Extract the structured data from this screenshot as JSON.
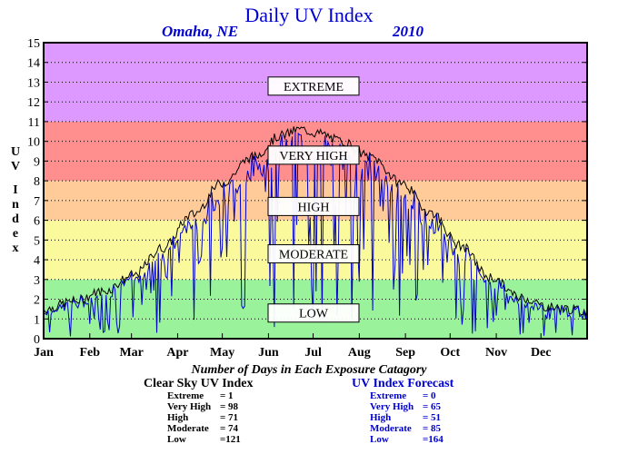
{
  "header": {
    "title": "Daily UV Index",
    "location": "Omaha, NE",
    "year": "2010"
  },
  "chart_data": {
    "type": "line",
    "ylabel": "UV Index",
    "ylim": [
      0,
      15
    ],
    "yticks": [
      "0",
      "1",
      "2",
      "3",
      "4",
      "5",
      "6",
      "7",
      "8",
      "9",
      "10",
      "11",
      "12",
      "13",
      "14",
      "15"
    ],
    "xlim": [
      0,
      365
    ],
    "xticks": [
      {
        "label": "Jan",
        "day": 1
      },
      {
        "label": "Feb",
        "day": 32
      },
      {
        "label": "Mar",
        "day": 60
      },
      {
        "label": "Apr",
        "day": 91
      },
      {
        "label": "May",
        "day": 121
      },
      {
        "label": "Jun",
        "day": 152
      },
      {
        "label": "Jul",
        "day": 182
      },
      {
        "label": "Aug",
        "day": 213
      },
      {
        "label": "Sep",
        "day": 244
      },
      {
        "label": "Oct",
        "day": 274
      },
      {
        "label": "Nov",
        "day": 305
      },
      {
        "label": "Dec",
        "day": 335
      }
    ],
    "grid": true,
    "bands": [
      {
        "label": "LOW",
        "from": 0,
        "to": 3,
        "color": "#9af29a",
        "label_y": 1.3
      },
      {
        "label": "MODERATE",
        "from": 3,
        "to": 6,
        "color": "#fafa9c",
        "label_y": 4.3
      },
      {
        "label": "HIGH",
        "from": 6,
        "to": 8,
        "color": "#ffcc99",
        "label_y": 6.7
      },
      {
        "label": "VERY HIGH",
        "from": 8,
        "to": 11,
        "color": "#ff8f8f",
        "label_y": 9.3
      },
      {
        "label": "EXTREME",
        "from": 11,
        "to": 15,
        "color": "#dd99ff",
        "label_y": 12.8
      }
    ],
    "series": [
      {
        "name": "Clear Sky UV Index",
        "color": "#000000",
        "anchors_day": [
          1,
          20,
          40,
          60,
          80,
          100,
          120,
          140,
          160,
          172,
          185,
          200,
          220,
          240,
          260,
          280,
          300,
          320,
          340,
          365
        ],
        "anchors_val": [
          1.5,
          1.9,
          2.4,
          3.2,
          4.6,
          6.3,
          7.9,
          9.2,
          10.3,
          10.6,
          10.4,
          10.0,
          9.2,
          7.9,
          6.4,
          4.7,
          3.1,
          2.1,
          1.6,
          1.4
        ]
      },
      {
        "name": "UV Index Forecast",
        "color": "#0000cc"
      }
    ]
  },
  "summary": {
    "heading": "Number of Days in Each Exposure Catagory",
    "clear_sky": {
      "title": "Clear Sky UV Index",
      "rows": [
        {
          "label": "Extreme",
          "value": "=    1"
        },
        {
          "label": "Very High",
          "value": "=  98"
        },
        {
          "label": "High",
          "value": "=  71"
        },
        {
          "label": "Moderate",
          "value": "=  74"
        },
        {
          "label": "Low",
          "value": "=121"
        }
      ]
    },
    "forecast": {
      "title": "UV Index Forecast",
      "rows": [
        {
          "label": "Extreme",
          "value": "=    0"
        },
        {
          "label": "Very High",
          "value": "=  65"
        },
        {
          "label": "High",
          "value": "=  51"
        },
        {
          "label": "Moderate",
          "value": "=  85"
        },
        {
          "label": "Low",
          "value": "=164"
        }
      ]
    }
  }
}
